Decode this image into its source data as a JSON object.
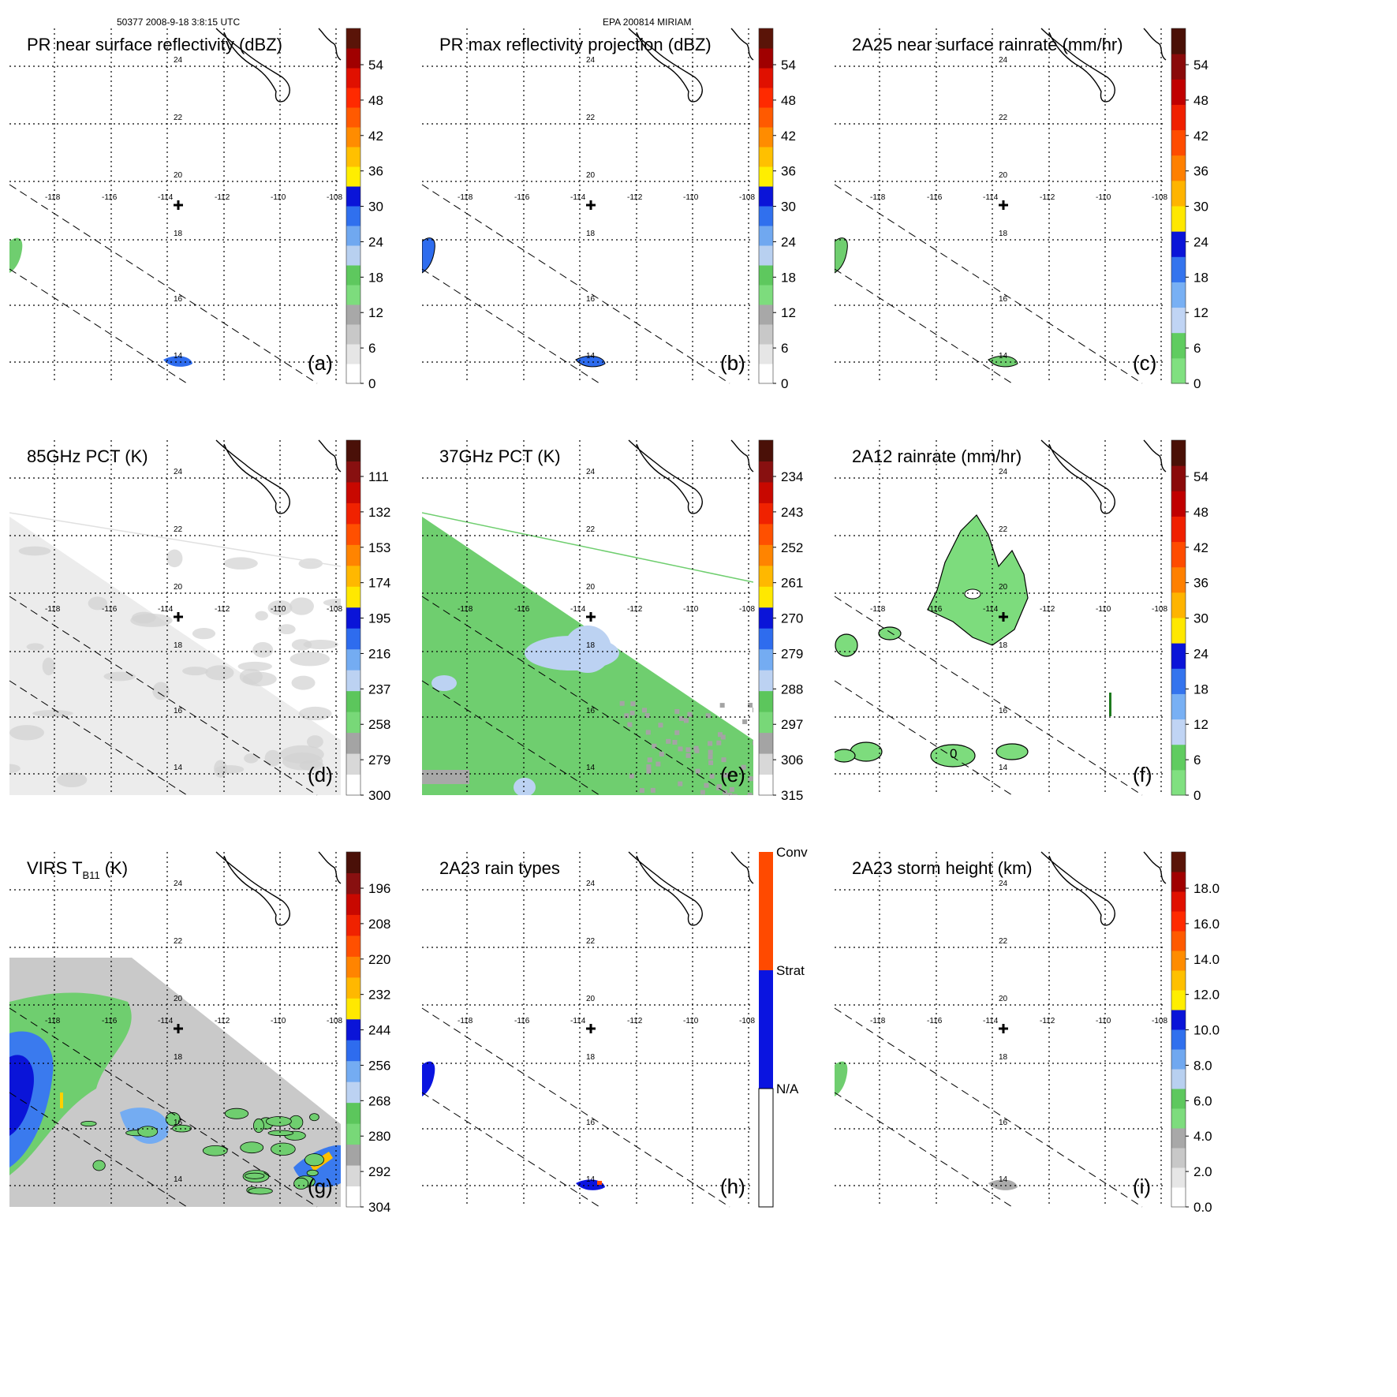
{
  "header": {
    "left": "50377 2008-9-18 3:8:15 UTC",
    "center": "EPA 200814 MIRIAM"
  },
  "panel_labels": [
    "(a)",
    "(b)",
    "(c)",
    "(d)",
    "(e)",
    "(f)",
    "(g)",
    "(h)",
    "(i)"
  ],
  "grid_labels": {
    "lon": [
      "-118",
      "-116",
      "-114",
      "-112",
      "-110",
      "-108"
    ],
    "lat": [
      "24",
      "22",
      "20",
      "18",
      "16",
      "14"
    ]
  },
  "colors": {
    "reflectivity": [
      "#ffffff",
      "#e6e6e6",
      "#c8c8c8",
      "#a8a8a8",
      "#7ddc7d",
      "#5ec85e",
      "#b8d0f0",
      "#70a8f0",
      "#3070ee",
      "#0a14d8",
      "#ffee00",
      "#ffc000",
      "#ff8c00",
      "#ff5a00",
      "#ff2a00",
      "#e01000",
      "#a00000",
      "#5a1408"
    ],
    "rain": [
      "#80e080",
      "#60cc60",
      "#c0d4f4",
      "#78b0f4",
      "#3474ee",
      "#0a14d8",
      "#ffe800",
      "#ffb400",
      "#ff8000",
      "#ff4c00",
      "#f02000",
      "#c00000",
      "#8a0a0a",
      "#4a1006"
    ],
    "pct": [
      "#ffffff",
      "#d8d8d8",
      "#a4a4a4",
      "#78d878",
      "#5cc65c",
      "#bcd2f2",
      "#74acf2",
      "#2e6cee",
      "#0a14d8",
      "#ffe800",
      "#ffb800",
      "#ff8400",
      "#ff5000",
      "#f02200",
      "#c80800",
      "#881010",
      "#4a1008"
    ],
    "raintype": [
      "#ffffff",
      "#0a14e0",
      "#ff4a00"
    ],
    "swath_green": "#6fce6f",
    "swath_grey": "#ececec",
    "swath_grey_dark": "#a8a8a8"
  },
  "chart_data": [
    {
      "type": "heatmap",
      "panel": "a",
      "title": "PR near surface reflectivity (dBZ)",
      "colorbar": {
        "unit": "dBZ",
        "range": [
          0,
          60
        ],
        "ticks": [
          "54",
          "48",
          "42",
          "36",
          "30",
          "24",
          "18",
          "12",
          "6",
          "0"
        ]
      }
    },
    {
      "type": "heatmap",
      "panel": "b",
      "title": "PR max reflectivity projection (dBZ)",
      "colorbar": {
        "unit": "dBZ",
        "range": [
          0,
          60
        ],
        "ticks": [
          "54",
          "48",
          "42",
          "36",
          "30",
          "24",
          "18",
          "12",
          "6",
          "0"
        ]
      }
    },
    {
      "type": "heatmap",
      "panel": "c",
      "title": "2A25 near surface rainrate (mm/hr)",
      "colorbar": {
        "unit": "mm/hr",
        "range": [
          0,
          60
        ],
        "ticks": [
          "54",
          "48",
          "42",
          "36",
          "30",
          "24",
          "18",
          "12",
          "6",
          "0"
        ]
      }
    },
    {
      "type": "heatmap",
      "panel": "d",
      "title": "85GHz PCT (K)",
      "colorbar": {
        "unit": "K",
        "range": [
          90,
          300
        ],
        "ticks": [
          "111",
          "132",
          "153",
          "174",
          "195",
          "216",
          "237",
          "258",
          "279",
          "300"
        ]
      }
    },
    {
      "type": "heatmap",
      "panel": "e",
      "title": "37GHz PCT (K)",
      "colorbar": {
        "unit": "K",
        "range": [
          225,
          315
        ],
        "ticks": [
          "234",
          "243",
          "252",
          "261",
          "270",
          "279",
          "288",
          "297",
          "306",
          "315"
        ]
      }
    },
    {
      "type": "heatmap",
      "panel": "f",
      "title": "2A12 rainrate (mm/hr)",
      "colorbar": {
        "unit": "mm/hr",
        "range": [
          0,
          60
        ],
        "ticks": [
          "54",
          "48",
          "42",
          "36",
          "30",
          "24",
          "18",
          "12",
          "6",
          "0"
        ]
      },
      "annotation": "0"
    },
    {
      "type": "heatmap",
      "panel": "g",
      "title_main": "VIRS T",
      "title_sub": "B11",
      "title_suffix": " (K)",
      "colorbar": {
        "unit": "K",
        "range": [
          184,
          304
        ],
        "ticks": [
          "196",
          "208",
          "220",
          "232",
          "244",
          "256",
          "268",
          "280",
          "292",
          "304"
        ]
      }
    },
    {
      "type": "heatmap",
      "panel": "h",
      "title": "2A23 rain types",
      "colorbar": {
        "categories": [
          "N/A",
          "Strat",
          "Conv"
        ]
      }
    },
    {
      "type": "heatmap",
      "panel": "i",
      "title": "2A23 storm height (km)",
      "colorbar": {
        "unit": "km",
        "range": [
          0,
          20
        ],
        "ticks": [
          "18.0",
          "16.0",
          "14.0",
          "12.0",
          "10.0",
          "8.0",
          "6.0",
          "4.0",
          "2.0",
          "0.0"
        ]
      }
    }
  ]
}
